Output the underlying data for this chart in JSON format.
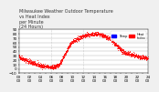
{
  "title": "Milwaukee Weather Outdoor Temperature\nvs Heat Index\nper Minute\n(24 Hours)",
  "title_fontsize": 3.5,
  "bg_color": "#f0f0f0",
  "plot_bg_color": "#ffffff",
  "dot_color": "#ff0000",
  "dot_size": 0.3,
  "legend_temp_color": "#0000ff",
  "legend_hi_color": "#ff0000",
  "ylim": [
    -10,
    90
  ],
  "yticks": [
    -10,
    0,
    10,
    20,
    30,
    40,
    50,
    60,
    70,
    80,
    90
  ],
  "ylabel_fontsize": 3.0,
  "xlabel_fontsize": 3.0,
  "n_points": 1440,
  "grid_color": "#aaaaaa",
  "vline_positions": [
    360,
    720
  ],
  "vline_color": "#aaaaaa",
  "seed": 42,
  "temp_curve": [
    28,
    27,
    26,
    25,
    24,
    23,
    22,
    21,
    20,
    19,
    18,
    17,
    17,
    16,
    15,
    14,
    13,
    13,
    12,
    11,
    10,
    10,
    9,
    9,
    8,
    8,
    7,
    7,
    6,
    6,
    6,
    6,
    5,
    5,
    5,
    5,
    4,
    4,
    4,
    4,
    4,
    5,
    5,
    6,
    7,
    8,
    10,
    12,
    15,
    18,
    22,
    26,
    30,
    34,
    38,
    42,
    46,
    50,
    53,
    56,
    58,
    60,
    62,
    63,
    65,
    66,
    67,
    68,
    69,
    70,
    71,
    72,
    73,
    74,
    75,
    76,
    76,
    77,
    77,
    78,
    78,
    78,
    78,
    79,
    79,
    79,
    79,
    79,
    79,
    79,
    79,
    79,
    79,
    78,
    78,
    78,
    77,
    77,
    76,
    75,
    74,
    73,
    72,
    71,
    70,
    68,
    67,
    65,
    63,
    61,
    59,
    57,
    55,
    53,
    51,
    49,
    47,
    45,
    43,
    41,
    40,
    39,
    38,
    37,
    36,
    35,
    35,
    34,
    34,
    33,
    33,
    32,
    32,
    31,
    31,
    30,
    30,
    29,
    29,
    28,
    28,
    27,
    27,
    26,
    26,
    25,
    25,
    24,
    24,
    23
  ],
  "x_tick_every": 60,
  "tick_label_every": 120
}
